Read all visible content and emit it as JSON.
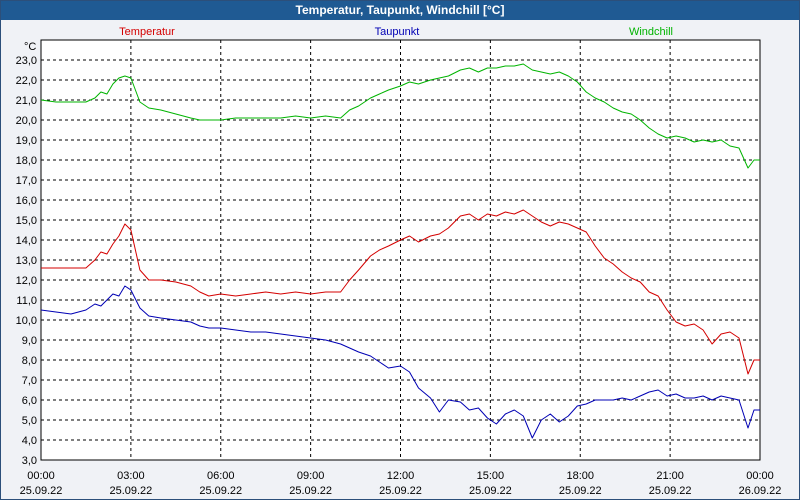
{
  "chart_data": {
    "type": "line",
    "title": "Temperatur, Taupunkt, Windchill [°C]",
    "ylabel": "°C",
    "ylim": [
      3.0,
      24.0
    ],
    "y_ticks": [
      "3,0",
      "4,0",
      "5,0",
      "6,0",
      "7,0",
      "8,0",
      "9,0",
      "10,0",
      "11,0",
      "12,0",
      "13,0",
      "14,0",
      "15,0",
      "16,0",
      "17,0",
      "18,0",
      "19,0",
      "20,0",
      "21,0",
      "22,0",
      "23,0"
    ],
    "x_range_hours": [
      0,
      24
    ],
    "x_ticks": [
      {
        "time": "00:00",
        "date": "25.09.22"
      },
      {
        "time": "03:00",
        "date": "25.09.22"
      },
      {
        "time": "06:00",
        "date": "25.09.22"
      },
      {
        "time": "09:00",
        "date": "25.09.22"
      },
      {
        "time": "12:00",
        "date": "25.09.22"
      },
      {
        "time": "15:00",
        "date": "25.09.22"
      },
      {
        "time": "18:00",
        "date": "25.09.22"
      },
      {
        "time": "21:00",
        "date": "25.09.22"
      },
      {
        "time": "00:00",
        "date": "26.09.22"
      }
    ],
    "grid": true,
    "series": [
      {
        "name": "Temperatur",
        "color": "#d40000",
        "x": [
          0,
          0.5,
          1,
          1.5,
          1.8,
          2,
          2.2,
          2.4,
          2.6,
          2.8,
          3,
          3.3,
          3.6,
          4,
          4.5,
          5,
          5.3,
          5.6,
          6,
          6.5,
          7,
          7.5,
          8,
          8.5,
          9,
          9.5,
          10,
          10.3,
          10.6,
          11,
          11.3,
          11.6,
          12,
          12.3,
          12.6,
          13,
          13.3,
          13.6,
          14,
          14.3,
          14.6,
          14.9,
          15.2,
          15.5,
          15.8,
          16.1,
          16.4,
          16.7,
          17,
          17.3,
          17.6,
          17.9,
          18.2,
          18.5,
          18.8,
          19.1,
          19.4,
          19.7,
          20,
          20.3,
          20.6,
          20.9,
          21.2,
          21.5,
          21.8,
          22.1,
          22.4,
          22.7,
          23,
          23.3,
          23.6,
          23.8,
          24
        ],
        "values": [
          12.6,
          12.6,
          12.6,
          12.6,
          13.0,
          13.4,
          13.3,
          13.8,
          14.2,
          14.8,
          14.5,
          12.5,
          12.0,
          12.0,
          11.9,
          11.7,
          11.4,
          11.2,
          11.3,
          11.2,
          11.3,
          11.4,
          11.3,
          11.4,
          11.3,
          11.4,
          11.4,
          12.0,
          12.5,
          13.2,
          13.5,
          13.7,
          14.0,
          14.2,
          13.9,
          14.2,
          14.3,
          14.6,
          15.2,
          15.3,
          15.0,
          15.3,
          15.2,
          15.4,
          15.3,
          15.5,
          15.2,
          14.9,
          14.7,
          14.9,
          14.8,
          14.6,
          14.4,
          13.7,
          13.1,
          12.8,
          12.4,
          12.1,
          11.9,
          11.4,
          11.2,
          10.5,
          9.9,
          9.7,
          9.8,
          9.5,
          8.8,
          9.3,
          9.4,
          9.1,
          7.3,
          8.0,
          8.0
        ]
      },
      {
        "name": "Taupunkt",
        "color": "#0000b4",
        "x": [
          0,
          0.5,
          1,
          1.5,
          1.8,
          2,
          2.2,
          2.4,
          2.6,
          2.8,
          3,
          3.3,
          3.6,
          4,
          4.5,
          5,
          5.3,
          5.6,
          6,
          6.5,
          7,
          7.5,
          8,
          8.5,
          9,
          9.5,
          10,
          10.3,
          10.6,
          11,
          11.3,
          11.6,
          12,
          12.3,
          12.6,
          13,
          13.3,
          13.6,
          14,
          14.3,
          14.6,
          14.9,
          15.2,
          15.5,
          15.8,
          16.1,
          16.4,
          16.7,
          17,
          17.3,
          17.6,
          17.9,
          18.2,
          18.5,
          18.8,
          19.1,
          19.4,
          19.7,
          20,
          20.3,
          20.6,
          20.9,
          21.2,
          21.5,
          21.8,
          22.1,
          22.4,
          22.7,
          23,
          23.3,
          23.6,
          23.8,
          24
        ],
        "values": [
          10.5,
          10.4,
          10.3,
          10.5,
          10.8,
          10.7,
          11.0,
          11.3,
          11.2,
          11.7,
          11.5,
          10.6,
          10.2,
          10.1,
          10.0,
          9.9,
          9.7,
          9.6,
          9.6,
          9.5,
          9.4,
          9.4,
          9.3,
          9.2,
          9.1,
          9.0,
          8.8,
          8.6,
          8.4,
          8.2,
          7.9,
          7.6,
          7.7,
          7.4,
          6.6,
          6.1,
          5.4,
          6.0,
          5.9,
          5.5,
          5.6,
          5.1,
          4.8,
          5.3,
          5.5,
          5.2,
          4.1,
          5.0,
          5.3,
          4.9,
          5.2,
          5.7,
          5.8,
          6.0,
          6.0,
          6.0,
          6.1,
          6.0,
          6.2,
          6.4,
          6.5,
          6.2,
          6.3,
          6.1,
          6.1,
          6.2,
          6.0,
          6.2,
          6.1,
          6.0,
          4.6,
          5.5,
          5.5
        ]
      },
      {
        "name": "Windchill",
        "color": "#00b400",
        "x": [
          0,
          0.5,
          1,
          1.5,
          1.8,
          2,
          2.2,
          2.4,
          2.6,
          2.8,
          3,
          3.3,
          3.6,
          4,
          4.5,
          5,
          5.3,
          5.6,
          6,
          6.5,
          7,
          7.5,
          8,
          8.5,
          9,
          9.5,
          10,
          10.3,
          10.6,
          11,
          11.3,
          11.6,
          12,
          12.3,
          12.6,
          13,
          13.3,
          13.6,
          14,
          14.3,
          14.6,
          14.9,
          15.2,
          15.5,
          15.8,
          16.1,
          16.4,
          16.7,
          17,
          17.3,
          17.6,
          17.9,
          18.2,
          18.5,
          18.8,
          19.1,
          19.4,
          19.7,
          20,
          20.3,
          20.6,
          20.9,
          21.2,
          21.5,
          21.8,
          22.1,
          22.4,
          22.7,
          23,
          23.3,
          23.6,
          23.8,
          24
        ],
        "values": [
          21.0,
          20.9,
          20.9,
          20.9,
          21.1,
          21.4,
          21.3,
          21.8,
          22.1,
          22.2,
          22.1,
          20.9,
          20.6,
          20.5,
          20.3,
          20.1,
          20.0,
          20.0,
          20.0,
          20.1,
          20.1,
          20.1,
          20.1,
          20.2,
          20.1,
          20.2,
          20.1,
          20.5,
          20.7,
          21.1,
          21.3,
          21.5,
          21.7,
          21.9,
          21.8,
          22.0,
          22.1,
          22.2,
          22.5,
          22.6,
          22.4,
          22.6,
          22.6,
          22.7,
          22.7,
          22.8,
          22.5,
          22.4,
          22.3,
          22.4,
          22.2,
          21.9,
          21.4,
          21.1,
          20.9,
          20.6,
          20.4,
          20.3,
          20.0,
          19.6,
          19.3,
          19.1,
          19.2,
          19.1,
          18.9,
          19.0,
          18.9,
          19.0,
          18.7,
          18.6,
          17.6,
          18.0,
          18.0
        ]
      }
    ]
  }
}
